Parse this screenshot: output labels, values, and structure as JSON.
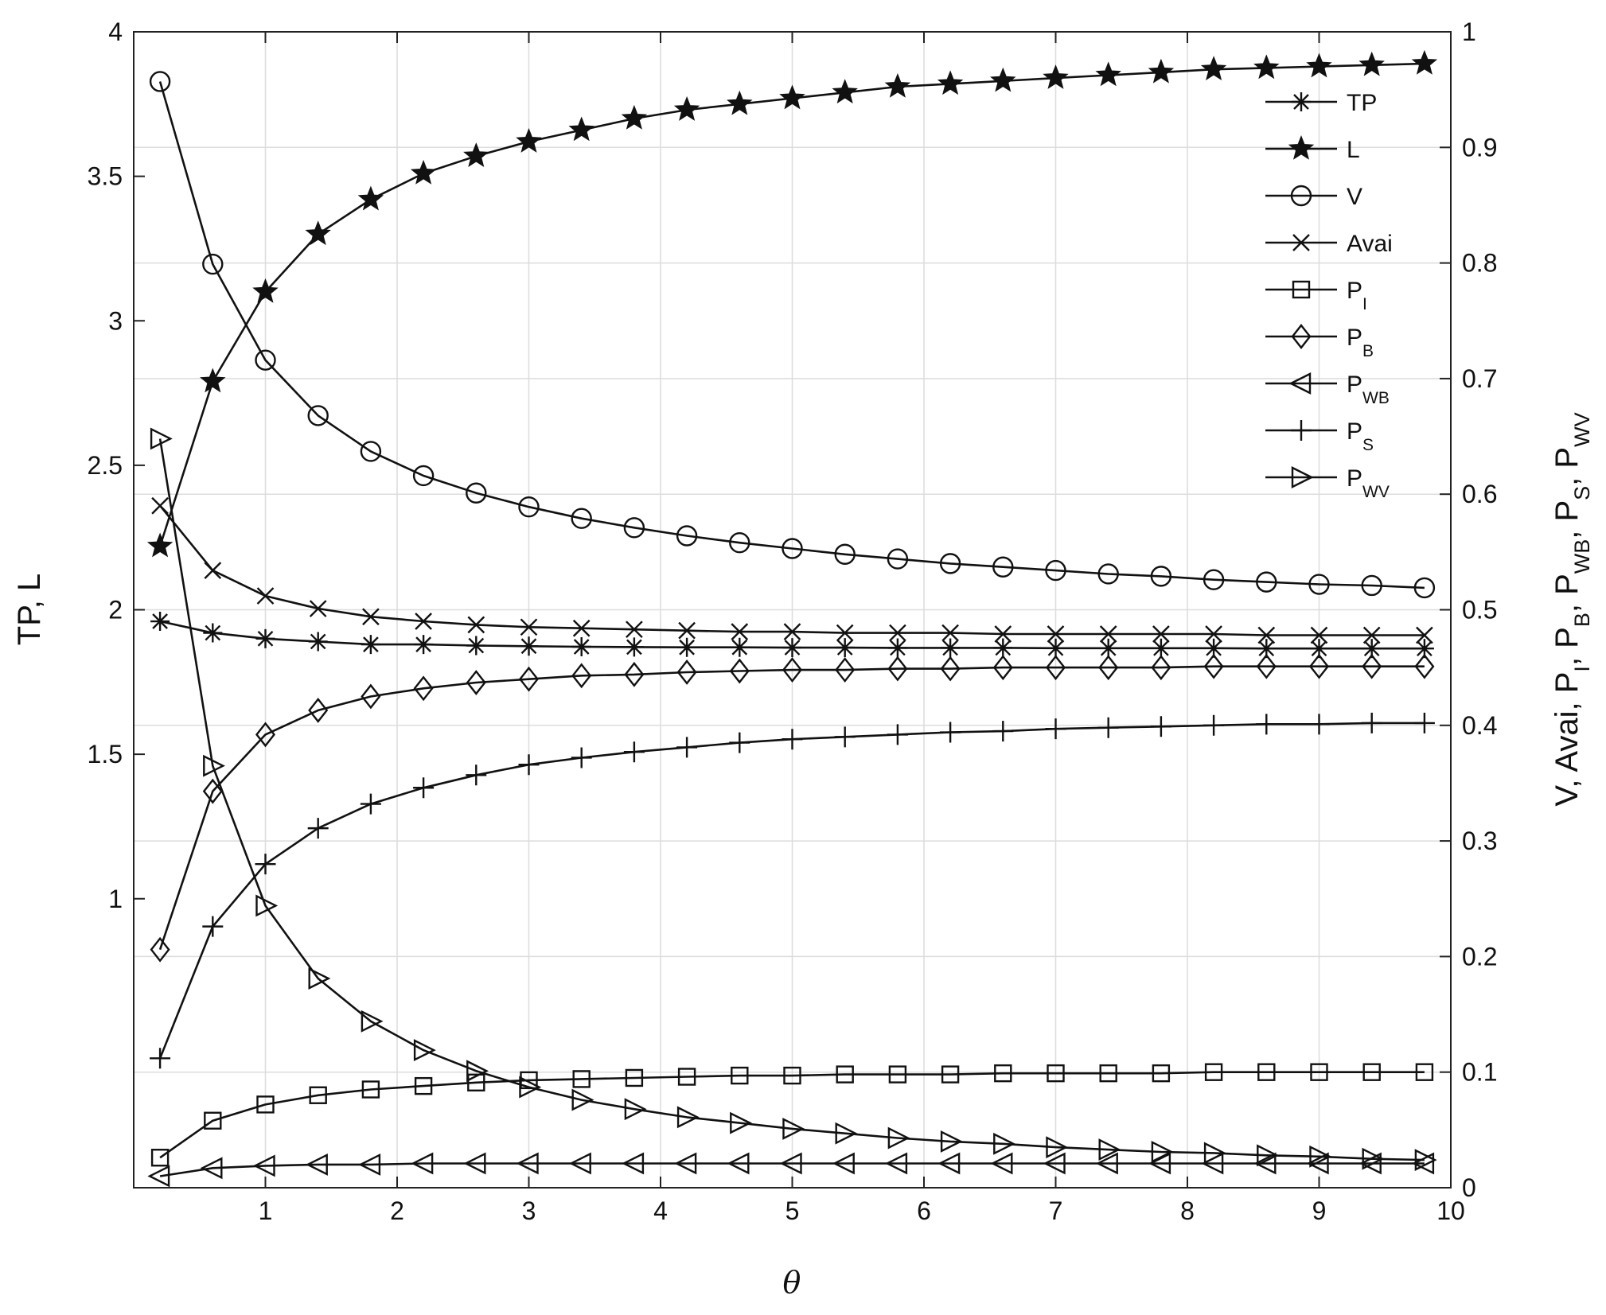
{
  "chart_data": {
    "type": "line",
    "xlabel": "θ",
    "ylabel_left": "TP, L",
    "ylabel_right_parts": [
      {
        "t": "V, Avai, P"
      },
      {
        "t": "I",
        "sub": true
      },
      {
        "t": ", P"
      },
      {
        "t": "B",
        "sub": true
      },
      {
        "t": ", P"
      },
      {
        "t": "WB",
        "sub": true
      },
      {
        "t": ", P"
      },
      {
        "t": "S",
        "sub": true
      },
      {
        "t": ", P"
      },
      {
        "t": "WV",
        "sub": true
      }
    ],
    "xlim": [
      0,
      10
    ],
    "ylim_left": [
      0,
      4
    ],
    "ylim_right": [
      0,
      1
    ],
    "x_ticks": [
      1,
      2,
      3,
      4,
      5,
      6,
      7,
      8,
      9,
      10
    ],
    "y_ticks_left": [
      1,
      1.5,
      2,
      2.5,
      3,
      3.5,
      4
    ],
    "y_ticks_right": [
      0,
      0.1,
      0.2,
      0.3,
      0.4,
      0.5,
      0.6,
      0.7,
      0.8,
      0.9,
      1
    ],
    "x": [
      0.2,
      0.6,
      1.0,
      1.4,
      1.8,
      2.2,
      2.6,
      3.0,
      3.4,
      3.8,
      4.2,
      4.6,
      5.0,
      5.4,
      5.8,
      6.2,
      6.6,
      7.0,
      7.4,
      7.8,
      8.2,
      8.6,
      9.0,
      9.4,
      9.8
    ],
    "grid": true,
    "legend_position": "top-right",
    "series": [
      {
        "name": "TP",
        "sub": "",
        "axis": "left",
        "marker": "asterisk",
        "values": [
          1.96,
          1.92,
          1.9,
          1.89,
          1.88,
          1.88,
          1.876,
          1.874,
          1.872,
          1.871,
          1.87,
          1.87,
          1.869,
          1.869,
          1.868,
          1.868,
          1.868,
          1.867,
          1.867,
          1.867,
          1.867,
          1.866,
          1.866,
          1.866,
          1.866
        ]
      },
      {
        "name": "L",
        "sub": "",
        "axis": "left",
        "marker": "star",
        "values": [
          2.22,
          2.79,
          3.1,
          3.3,
          3.42,
          3.51,
          3.57,
          3.62,
          3.66,
          3.7,
          3.73,
          3.75,
          3.77,
          3.79,
          3.81,
          3.82,
          3.83,
          3.84,
          3.85,
          3.86,
          3.87,
          3.875,
          3.88,
          3.885,
          3.89
        ]
      },
      {
        "name": "V",
        "sub": "",
        "axis": "right",
        "marker": "circle",
        "values": [
          0.957,
          0.799,
          0.716,
          0.668,
          0.637,
          0.616,
          0.601,
          0.589,
          0.579,
          0.571,
          0.564,
          0.558,
          0.553,
          0.548,
          0.544,
          0.54,
          0.537,
          0.534,
          0.531,
          0.529,
          0.526,
          0.524,
          0.522,
          0.521,
          0.519
        ]
      },
      {
        "name": "Avai",
        "sub": "",
        "axis": "right",
        "marker": "x",
        "values": [
          0.59,
          0.534,
          0.512,
          0.501,
          0.494,
          0.49,
          0.487,
          0.485,
          0.484,
          0.483,
          0.482,
          0.481,
          0.481,
          0.48,
          0.48,
          0.48,
          0.479,
          0.479,
          0.479,
          0.479,
          0.479,
          0.478,
          0.478,
          0.478,
          0.478
        ]
      },
      {
        "name": "P",
        "sub": "I",
        "axis": "right",
        "marker": "square",
        "values": [
          0.026,
          0.058,
          0.072,
          0.08,
          0.085,
          0.088,
          0.091,
          0.093,
          0.094,
          0.095,
          0.096,
          0.097,
          0.097,
          0.098,
          0.098,
          0.098,
          0.099,
          0.099,
          0.099,
          0.099,
          0.1,
          0.1,
          0.1,
          0.1,
          0.1
        ]
      },
      {
        "name": "P",
        "sub": "B",
        "axis": "right",
        "marker": "diamond",
        "values": [
          0.206,
          0.343,
          0.392,
          0.413,
          0.425,
          0.432,
          0.437,
          0.44,
          0.443,
          0.444,
          0.446,
          0.447,
          0.448,
          0.448,
          0.449,
          0.449,
          0.45,
          0.45,
          0.45,
          0.45,
          0.451,
          0.451,
          0.451,
          0.451,
          0.451
        ]
      },
      {
        "name": "P",
        "sub": "WB",
        "axis": "right",
        "marker": "triangle-left",
        "values": [
          0.01,
          0.017,
          0.019,
          0.02,
          0.02,
          0.021,
          0.021,
          0.021,
          0.021,
          0.021,
          0.021,
          0.021,
          0.021,
          0.021,
          0.021,
          0.021,
          0.021,
          0.021,
          0.021,
          0.021,
          0.021,
          0.021,
          0.021,
          0.021,
          0.021
        ]
      },
      {
        "name": "P",
        "sub": "S",
        "axis": "right",
        "marker": "plus",
        "values": [
          0.112,
          0.226,
          0.28,
          0.311,
          0.332,
          0.346,
          0.357,
          0.366,
          0.372,
          0.377,
          0.381,
          0.385,
          0.388,
          0.39,
          0.392,
          0.394,
          0.395,
          0.397,
          0.398,
          0.399,
          0.4,
          0.401,
          0.401,
          0.402,
          0.402
        ]
      },
      {
        "name": "P",
        "sub": "WV",
        "axis": "right",
        "marker": "triangle-right",
        "values": [
          0.648,
          0.365,
          0.244,
          0.181,
          0.144,
          0.119,
          0.101,
          0.087,
          0.076,
          0.068,
          0.061,
          0.056,
          0.051,
          0.047,
          0.043,
          0.04,
          0.038,
          0.035,
          0.033,
          0.031,
          0.03,
          0.028,
          0.027,
          0.025,
          0.024
        ]
      }
    ]
  }
}
